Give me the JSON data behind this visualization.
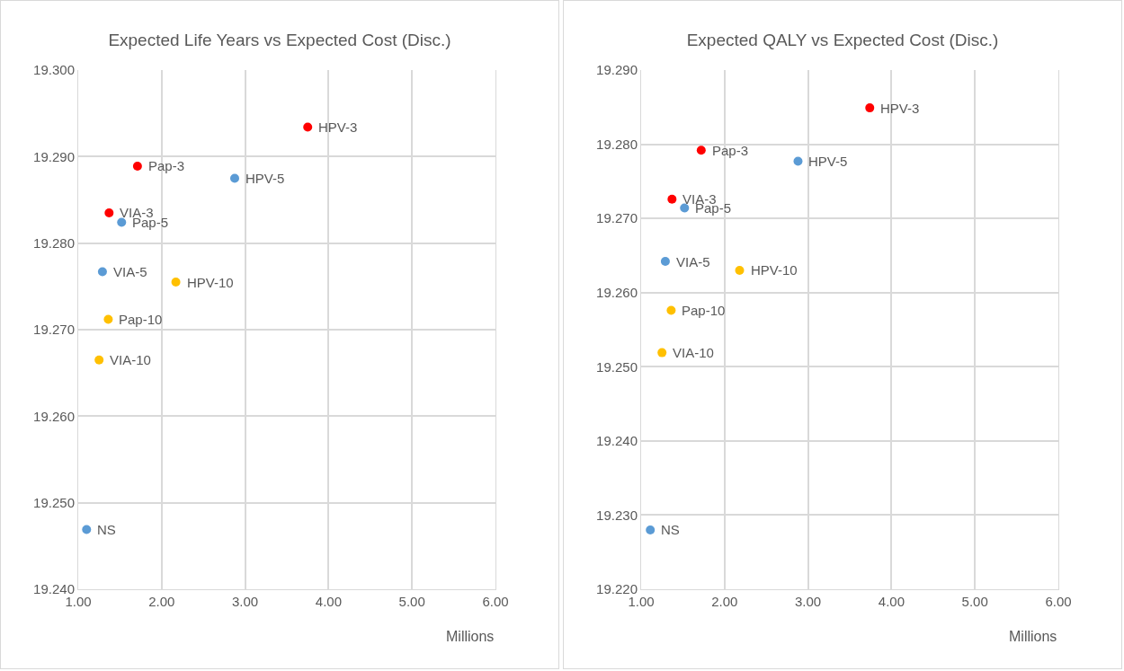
{
  "chart_data": [
    {
      "type": "scatter",
      "title": "Expected Life Years vs Expected Cost (Disc.)",
      "xlabel": "Millions",
      "x": [
        3.75,
        1.71,
        2.875,
        1.37,
        1.52,
        1.29,
        2.17,
        1.36,
        1.25,
        1.1
      ],
      "values": [
        19.2934,
        19.2889,
        19.2875,
        19.2835,
        19.2824,
        19.2767,
        19.2755,
        19.2712,
        19.2665,
        19.2469
      ],
      "colors": [
        "#ff0000",
        "#ff0000",
        "#5b9bd5",
        "#ff0000",
        "#5b9bd5",
        "#5b9bd5",
        "#ffc000",
        "#ffc000",
        "#ffc000",
        "#5b9bd5"
      ],
      "annotations": [
        {
          "text": "HPV-3",
          "x": 3.75,
          "y": 19.2934
        },
        {
          "text": "Pap-3",
          "x": 1.71,
          "y": 19.2889
        },
        {
          "text": "HPV-5",
          "x": 2.875,
          "y": 19.2875
        },
        {
          "text": "VIA-3",
          "x": 1.37,
          "y": 19.2835
        },
        {
          "text": "Pap-5",
          "x": 1.52,
          "y": 19.2824
        },
        {
          "text": "VIA-5",
          "x": 1.29,
          "y": 19.2767
        },
        {
          "text": "HPV-10",
          "x": 2.17,
          "y": 19.2755
        },
        {
          "text": "Pap-10",
          "x": 1.36,
          "y": 19.2712
        },
        {
          "text": "VIA-10",
          "x": 1.25,
          "y": 19.2665
        },
        {
          "text": "NS",
          "x": 1.1,
          "y": 19.2469
        }
      ],
      "xlim": [
        1,
        6
      ],
      "xticks": [
        {
          "value": 1,
          "label": "1.00"
        },
        {
          "value": 2,
          "label": "2.00"
        },
        {
          "value": 3,
          "label": "3.00"
        },
        {
          "value": 4,
          "label": "4.00"
        },
        {
          "value": 5,
          "label": "5.00"
        },
        {
          "value": 6,
          "label": "6.00"
        }
      ],
      "ylim": [
        19.24,
        19.3
      ],
      "yticks": [
        {
          "value": 19.24,
          "label": "19.240"
        },
        {
          "value": 19.25,
          "label": "19.250"
        },
        {
          "value": 19.26,
          "label": "19.260"
        },
        {
          "value": 19.27,
          "label": "19.270"
        },
        {
          "value": 19.28,
          "label": "19.280"
        },
        {
          "value": 19.29,
          "label": "19.290"
        },
        {
          "value": 19.3,
          "label": "19.300"
        }
      ],
      "grid": true,
      "marker": "circle"
    },
    {
      "type": "scatter",
      "title": "Expected QALY vs Expected Cost (Disc.)",
      "xlabel": "Millions",
      "x": [
        3.74,
        1.72,
        2.88,
        1.37,
        1.52,
        1.29,
        2.18,
        1.36,
        1.25,
        1.11
      ],
      "values": [
        19.2849,
        19.2792,
        19.2777,
        19.2726,
        19.2714,
        19.2642,
        19.263,
        19.2576,
        19.2519,
        19.228
      ],
      "colors": [
        "#ff0000",
        "#ff0000",
        "#5b9bd5",
        "#ff0000",
        "#5b9bd5",
        "#5b9bd5",
        "#ffc000",
        "#ffc000",
        "#ffc000",
        "#5b9bd5"
      ],
      "annotations": [
        {
          "text": "HPV-3",
          "x": 3.74,
          "y": 19.2849
        },
        {
          "text": "Pap-3",
          "x": 1.72,
          "y": 19.2792
        },
        {
          "text": "HPV-5",
          "x": 2.88,
          "y": 19.2777
        },
        {
          "text": "VIA-3",
          "x": 1.37,
          "y": 19.2726
        },
        {
          "text": "Pap-5",
          "x": 1.52,
          "y": 19.2714
        },
        {
          "text": "VIA-5",
          "x": 1.29,
          "y": 19.2642
        },
        {
          "text": "HPV-10",
          "x": 2.18,
          "y": 19.263
        },
        {
          "text": "Pap-10",
          "x": 1.36,
          "y": 19.2576
        },
        {
          "text": "VIA-10",
          "x": 1.25,
          "y": 19.2519
        },
        {
          "text": "NS",
          "x": 1.11,
          "y": 19.228
        }
      ],
      "xlim": [
        1,
        6
      ],
      "xticks": [
        {
          "value": 1,
          "label": "1.00"
        },
        {
          "value": 2,
          "label": "2.00"
        },
        {
          "value": 3,
          "label": "3.00"
        },
        {
          "value": 4,
          "label": "4.00"
        },
        {
          "value": 5,
          "label": "5.00"
        },
        {
          "value": 6,
          "label": "6.00"
        }
      ],
      "ylim": [
        19.22,
        19.29
      ],
      "yticks": [
        {
          "value": 19.22,
          "label": "19.220"
        },
        {
          "value": 19.23,
          "label": "19.230"
        },
        {
          "value": 19.24,
          "label": "19.240"
        },
        {
          "value": 19.25,
          "label": "19.250"
        },
        {
          "value": 19.26,
          "label": "19.260"
        },
        {
          "value": 19.27,
          "label": "19.270"
        },
        {
          "value": 19.28,
          "label": "19.280"
        },
        {
          "value": 19.29,
          "label": "19.290"
        }
      ],
      "grid": true,
      "marker": "circle"
    }
  ]
}
